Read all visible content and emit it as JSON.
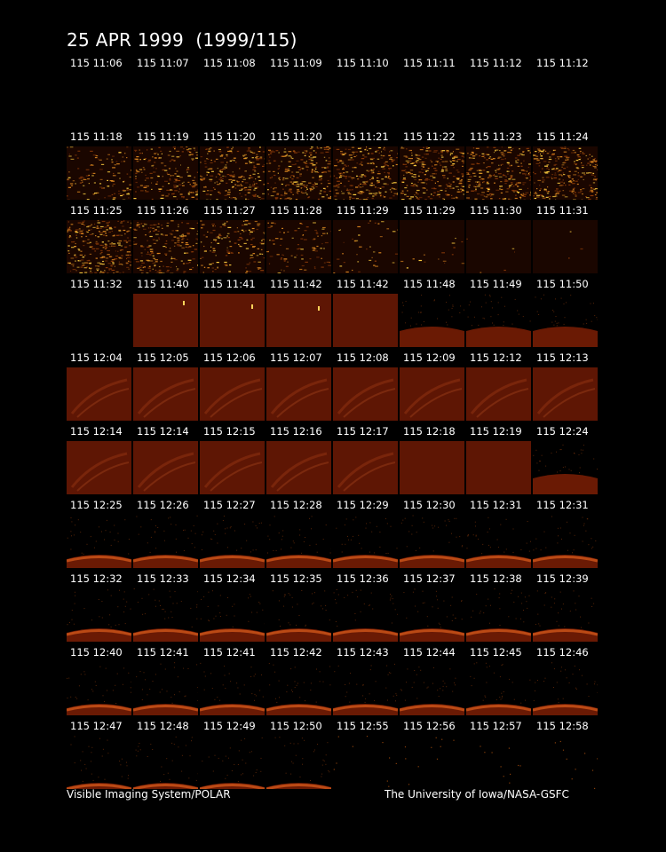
{
  "title": "25 APR 1999  (1999/115)",
  "footer": {
    "left": "Visible Imaging System/POLAR",
    "right": "The University of Iowa/NASA-GSFC"
  },
  "colors": {
    "background": "#000000",
    "text": "#ffffff",
    "disk": "#6a1a04",
    "limb_glow": "#d0561a",
    "noise_bright": "#ffd040"
  },
  "rows": [
    {
      "timestamps": [
        "115 11:06",
        "115 11:07",
        "115 11:08",
        "115 11:09",
        "115 11:10",
        "115 11:11",
        "115 11:12",
        "115 11:12"
      ],
      "kinds": [
        "none",
        "none",
        "none",
        "none",
        "none",
        "none",
        "none",
        "none"
      ]
    },
    {
      "timestamps": [
        "115 11:18",
        "115 11:19",
        "115 11:20",
        "115 11:20",
        "115 11:21",
        "115 11:22",
        "115 11:23",
        "115 11:24"
      ],
      "kinds": [
        "noise",
        "noise",
        "noise",
        "noise",
        "noise",
        "noise",
        "noise",
        "noise"
      ],
      "levels": [
        0.45,
        0.7,
        0.85,
        0.95,
        1.0,
        1.0,
        1.0,
        1.0
      ]
    },
    {
      "timestamps": [
        "115 11:25",
        "115 11:26",
        "115 11:27",
        "115 11:28",
        "115 11:29",
        "115 11:29",
        "115 11:30",
        "115 11:31"
      ],
      "kinds": [
        "noise",
        "noise",
        "noise",
        "noise",
        "noise",
        "noise",
        "noise",
        "noise"
      ],
      "levels": [
        1.0,
        0.75,
        0.55,
        0.35,
        0.15,
        0.06,
        0.02,
        0.01
      ]
    },
    {
      "timestamps": [
        "115 11:32",
        "115 11:40",
        "115 11:41",
        "115 11:42",
        "115 11:42",
        "115 11:48",
        "115 11:49",
        "115 11:50"
      ],
      "kinds": [
        "none",
        "full-spot",
        "full-spot",
        "full-spot",
        "full",
        "limb-low",
        "limb-low",
        "limb-low"
      ]
    },
    {
      "timestamps": [
        "115 12:04",
        "115 12:05",
        "115 12:06",
        "115 12:07",
        "115 12:08",
        "115 12:09",
        "115 12:12",
        "115 12:13"
      ],
      "kinds": [
        "oval",
        "oval",
        "oval",
        "oval",
        "oval",
        "oval",
        "oval",
        "oval"
      ]
    },
    {
      "timestamps": [
        "115 12:14",
        "115 12:14",
        "115 12:15",
        "115 12:16",
        "115 12:17",
        "115 12:18",
        "115 12:19",
        "115 12:24"
      ],
      "kinds": [
        "oval",
        "oval",
        "oval",
        "oval",
        "oval",
        "full",
        "full",
        "limb-mid"
      ]
    },
    {
      "timestamps": [
        "115 12:25",
        "115 12:26",
        "115 12:27",
        "115 12:28",
        "115 12:29",
        "115 12:30",
        "115 12:31",
        "115 12:31"
      ],
      "kinds": [
        "limb",
        "limb",
        "limb",
        "limb",
        "limb",
        "limb",
        "limb",
        "limb"
      ]
    },
    {
      "timestamps": [
        "115 12:32",
        "115 12:33",
        "115 12:34",
        "115 12:35",
        "115 12:36",
        "115 12:37",
        "115 12:38",
        "115 12:39"
      ],
      "kinds": [
        "limb",
        "limb",
        "limb",
        "limb",
        "limb",
        "limb",
        "limb",
        "limb"
      ]
    },
    {
      "timestamps": [
        "115 12:40",
        "115 12:41",
        "115 12:41",
        "115 12:42",
        "115 12:43",
        "115 12:44",
        "115 12:45",
        "115 12:46"
      ],
      "kinds": [
        "limb-thin",
        "limb-thin",
        "limb-thin",
        "limb-thin",
        "limb-thin",
        "limb-thin",
        "limb-thin",
        "limb-thin"
      ]
    },
    {
      "timestamps": [
        "115 12:47",
        "115 12:48",
        "115 12:49",
        "115 12:50",
        "115 12:55",
        "115 12:56",
        "115 12:57",
        "115 12:58"
      ],
      "kinds": [
        "limb-edge",
        "limb-edge",
        "limb-edge",
        "limb-edge",
        "specks",
        "specks",
        "specks",
        "specks"
      ]
    }
  ]
}
